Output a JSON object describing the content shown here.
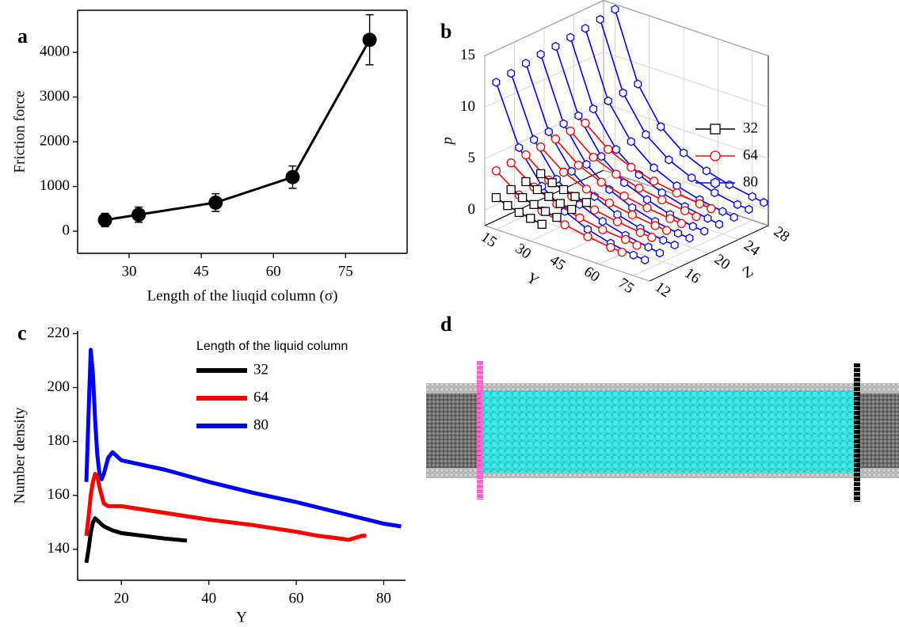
{
  "chart_data": [
    {
      "type": "line",
      "label": "a",
      "xlabel": "Length of the liuqid column (σ)",
      "ylabel": "Friction force",
      "x": [
        25,
        32,
        48,
        64,
        80
      ],
      "values": [
        250,
        370,
        640,
        1210,
        4280
      ],
      "errors": [
        150,
        170,
        200,
        250,
        560
      ],
      "color": "#000000",
      "marker": "circle",
      "frame": true,
      "xlim": [
        19.3,
        87.8
      ],
      "xticks": [
        30,
        45,
        60,
        75
      ],
      "ylim": [
        -495,
        4940
      ],
      "yticks": [
        0,
        1000,
        2000,
        3000,
        4000
      ]
    },
    {
      "type": "line3d",
      "label": "b",
      "xlabel": "Y",
      "zlabel": "Z",
      "ylabel": "p",
      "xlim": [
        10,
        82
      ],
      "zlim": [
        12,
        28
      ],
      "ylim": [
        -1.5,
        15
      ],
      "xticks": [
        15,
        30,
        45,
        60,
        75
      ],
      "zticks": [
        12,
        16,
        20,
        24,
        28
      ],
      "yticks": [
        0,
        5,
        10,
        15
      ],
      "series": [
        {
          "name": "32",
          "color": "#000000",
          "marker": "square",
          "x": [
            15,
            20,
            25,
            30,
            35
          ],
          "lines": [
            {
              "z": 12,
              "values": [
                1.6,
                1.2,
                0.9,
                0.7,
                0.5
              ]
            },
            {
              "z": 14,
              "values": [
                1.7,
                1.3,
                1.0,
                0.7,
                0.5
              ]
            },
            {
              "z": 16,
              "values": [
                1.8,
                1.4,
                1.1,
                0.8,
                0.6
              ]
            },
            {
              "z": 18,
              "values": [
                1.9,
                1.4,
                1.1,
                0.8,
                0.6
              ]
            }
          ]
        },
        {
          "name": "64",
          "color": "#ff0000",
          "marker": "circle",
          "x": [
            15,
            25,
            35,
            45,
            55,
            65,
            70
          ],
          "lines": [
            {
              "z": 12,
              "values": [
                4.2,
                2.6,
                1.8,
                1.2,
                0.8,
                0.5,
                0.4
              ]
            },
            {
              "z": 14,
              "values": [
                4.3,
                2.7,
                1.8,
                1.2,
                0.8,
                0.6,
                0.4
              ]
            },
            {
              "z": 16,
              "values": [
                4.4,
                2.7,
                1.9,
                1.3,
                0.9,
                0.6,
                0.5
              ]
            },
            {
              "z": 18,
              "values": [
                4.5,
                2.8,
                1.9,
                1.3,
                0.9,
                0.6,
                0.5
              ]
            },
            {
              "z": 20,
              "values": [
                4.6,
                2.8,
                1.9,
                1.3,
                0.9,
                0.6,
                0.5
              ]
            },
            {
              "z": 22,
              "values": [
                4.7,
                2.9,
                2.0,
                1.4,
                1.0,
                0.7,
                0.5
              ]
            },
            {
              "z": 24,
              "values": [
                4.8,
                3.0,
                2.0,
                1.4,
                1.0,
                0.7,
                0.6
              ]
            }
          ]
        },
        {
          "name": "80",
          "color": "#0000ff",
          "marker": "hexagon",
          "x": [
            15,
            25,
            35,
            45,
            55,
            65,
            75,
            80
          ],
          "lines": [
            {
              "z": 12,
              "values": [
                12.8,
                7.2,
                4.2,
                2.5,
                1.5,
                0.9,
                0.5,
                0.4
              ]
            },
            {
              "z": 14,
              "values": [
                13.0,
                7.3,
                4.2,
                2.5,
                1.6,
                1.0,
                0.6,
                0.4
              ]
            },
            {
              "z": 16,
              "values": [
                13.3,
                7.4,
                4.3,
                2.6,
                1.6,
                1.0,
                0.6,
                0.5
              ]
            },
            {
              "z": 18,
              "values": [
                13.5,
                7.5,
                4.3,
                2.6,
                1.6,
                1.0,
                0.6,
                0.5
              ]
            },
            {
              "z": 20,
              "values": [
                13.6,
                7.6,
                4.4,
                2.6,
                1.7,
                1.0,
                0.6,
                0.5
              ]
            },
            {
              "z": 22,
              "values": [
                13.8,
                7.6,
                4.4,
                2.7,
                1.7,
                1.1,
                0.7,
                0.5
              ]
            },
            {
              "z": 24,
              "values": [
                14.0,
                7.7,
                4.5,
                2.7,
                1.7,
                1.1,
                0.7,
                0.5
              ]
            },
            {
              "z": 26,
              "values": [
                14.2,
                7.8,
                4.5,
                2.8,
                1.8,
                1.1,
                0.7,
                0.6
              ]
            },
            {
              "z": 28,
              "values": [
                14.5,
                8.0,
                4.6,
                2.8,
                1.8,
                1.2,
                0.8,
                0.6
              ]
            }
          ]
        }
      ]
    },
    {
      "type": "line",
      "label": "c",
      "xlabel": "Y",
      "ylabel": "Number density",
      "legend_title": "Length of the liquid column",
      "frame": false,
      "xlim": [
        10,
        85
      ],
      "xticks": [
        20,
        40,
        60,
        80
      ],
      "ylim": [
        128.5,
        221
      ],
      "yticks": [
        140,
        160,
        180,
        200,
        220
      ],
      "series": [
        {
          "name": "32",
          "color": "#000000",
          "x": [
            12,
            12.5,
            13,
            13.5,
            14,
            15,
            16,
            18,
            20,
            25,
            30,
            35
          ],
          "values": [
            135,
            140,
            146,
            150,
            151.5,
            150,
            148.5,
            147,
            146,
            145,
            144,
            143.2
          ]
        },
        {
          "name": "64",
          "color": "#ff0000",
          "x": [
            12,
            12.5,
            13,
            13.5,
            14,
            14.5,
            15,
            16,
            17,
            20,
            30,
            40,
            50,
            60,
            65,
            70,
            72,
            74,
            75,
            76
          ],
          "values": [
            145,
            152,
            160,
            165,
            168,
            167,
            163,
            157,
            156,
            156,
            153.5,
            151,
            149,
            146.5,
            145,
            144,
            143.5,
            144.5,
            145,
            145
          ]
        },
        {
          "name": "80",
          "color": "#0000ff",
          "x": [
            12,
            12.5,
            13,
            13.5,
            14,
            14.5,
            15,
            15.5,
            16,
            17,
            18,
            20,
            30,
            40,
            50,
            60,
            70,
            80,
            84
          ],
          "values": [
            165,
            190,
            214,
            205,
            188,
            175,
            168,
            166,
            168,
            174,
            176,
            173,
            169.5,
            165,
            161,
            157.5,
            153.5,
            149.5,
            148.5
          ]
        }
      ]
    },
    {
      "type": "diagram",
      "label": "d"
    }
  ]
}
